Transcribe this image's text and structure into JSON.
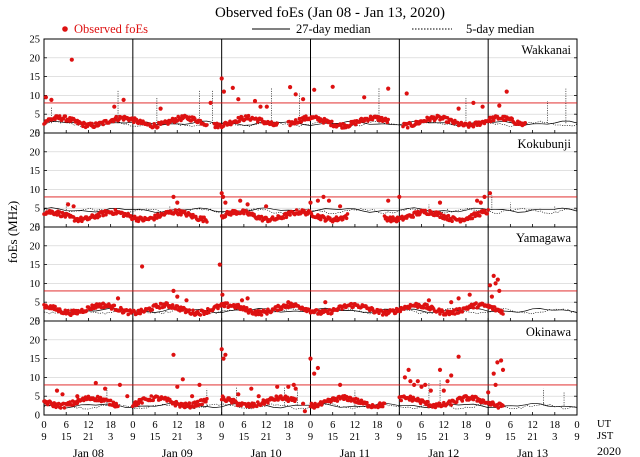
{
  "chart_data": {
    "type": "scatter",
    "title": "Observed foEs (Jan 08 - Jan 13, 2020)",
    "legend": {
      "observed": "Observed foEs",
      "median27": "27-day median",
      "median5": "5-day median",
      "observed_color": "#dd1111",
      "line_color": "#000000"
    },
    "ylabel": "foEs (MHz)",
    "ylim": [
      0,
      25
    ],
    "yticks": [
      "0",
      "5",
      "10",
      "15",
      "20",
      "25"
    ],
    "x_range_hours_ut": [
      0,
      144
    ],
    "xtick_ut": [
      "0",
      "6",
      "12",
      "18",
      "0",
      "6",
      "12",
      "18",
      "0",
      "6",
      "12",
      "18",
      "0",
      "6",
      "12",
      "18",
      "0",
      "6",
      "12",
      "18",
      "0",
      "6",
      "12",
      "18",
      "0"
    ],
    "xtick_jst": [
      "9",
      "15",
      "21",
      "3",
      "9",
      "15",
      "21",
      "3",
      "9",
      "15",
      "21",
      "3",
      "9",
      "15",
      "21",
      "3",
      "9",
      "15",
      "21",
      "3",
      "9",
      "15",
      "21",
      "3",
      "9"
    ],
    "ut_label": "UT",
    "jst_label": "JST",
    "days": [
      "Jan 08",
      "Jan 09",
      "Jan 10",
      "Jan 11",
      "Jan 12",
      "Jan 13"
    ],
    "year": "2020",
    "panels": [
      {
        "station": "Wakkanai",
        "threshold_mhz": 8,
        "median27_mhz": 2.6,
        "baseline_mhz": 3.0,
        "observed_coverage_hours": [
          [
            0,
            44
          ],
          [
            46,
            63
          ],
          [
            66,
            93
          ],
          [
            97,
            130
          ]
        ],
        "outliers": [
          [
            0.5,
            9.5
          ],
          [
            2.0,
            8.8
          ],
          [
            7.5,
            19.5
          ],
          [
            19.0,
            7.0
          ],
          [
            21.5,
            8.8
          ],
          [
            31.5,
            6.5
          ],
          [
            45.0,
            8.0
          ],
          [
            48.0,
            14.5
          ],
          [
            48.6,
            11.0
          ],
          [
            51.0,
            12.0
          ],
          [
            52.5,
            9.0
          ],
          [
            57.0,
            8.5
          ],
          [
            58.5,
            7.0
          ],
          [
            60.2,
            7.0
          ],
          [
            66.5,
            12.2
          ],
          [
            68.0,
            10.3
          ],
          [
            70.0,
            9.0
          ],
          [
            73.0,
            11.5
          ],
          [
            78.0,
            12.3
          ],
          [
            86.5,
            9.5
          ],
          [
            93.0,
            11.8
          ],
          [
            98.0,
            10.5
          ],
          [
            112.0,
            6.5
          ],
          [
            116.0,
            8.0
          ],
          [
            118.5,
            7.0
          ],
          [
            123.0,
            7.3
          ],
          [
            125.0,
            11.0
          ]
        ],
        "spikes_5day": [
          [
            2.0,
            7.0
          ],
          [
            20.0,
            11.5
          ],
          [
            30.5,
            9.5
          ],
          [
            42.0,
            11.5
          ],
          [
            45.5,
            11.2
          ],
          [
            61.5,
            12.0
          ],
          [
            69.0,
            10.5
          ],
          [
            90.5,
            12.0
          ],
          [
            114.0,
            9.5
          ],
          [
            136.0,
            8.5
          ],
          [
            141.0,
            11.8
          ]
        ]
      },
      {
        "station": "Kokubunji",
        "threshold_mhz": 8,
        "median27_mhz": 4.5,
        "baseline_mhz": 3.0,
        "observed_coverage_hours": [
          [
            0,
            44
          ],
          [
            48,
            82
          ],
          [
            92,
            120
          ]
        ],
        "outliers": [
          [
            6.5,
            6.0
          ],
          [
            8.0,
            5.5
          ],
          [
            35.0,
            8.0
          ],
          [
            36.0,
            6.5
          ],
          [
            48.0,
            9.0
          ],
          [
            48.4,
            8.0
          ],
          [
            49.0,
            6.5
          ],
          [
            53.0,
            7.0
          ],
          [
            55.0,
            6.0
          ],
          [
            60.0,
            5.5
          ],
          [
            72.0,
            6.5
          ],
          [
            74.0,
            7.0
          ],
          [
            75.5,
            8.0
          ],
          [
            77.0,
            7.0
          ],
          [
            80.0,
            5.5
          ],
          [
            93.0,
            7.0
          ],
          [
            96.0,
            8.0
          ],
          [
            107.0,
            6.5
          ],
          [
            117.0,
            7.0
          ],
          [
            120.5,
            9.0
          ],
          [
            119.0,
            8.0
          ],
          [
            118.0,
            6.5
          ]
        ],
        "spikes_5day": [
          [
            6.0,
            6.5
          ],
          [
            34.0,
            5.5
          ],
          [
            104.0,
            6.0
          ],
          [
            109.0,
            5.0
          ],
          [
            121.0,
            8.5
          ],
          [
            126.0,
            6.5
          ],
          [
            138.0,
            5.5
          ]
        ]
      },
      {
        "station": "Yamagawa",
        "threshold_mhz": 8,
        "median27_mhz": 2.8,
        "baseline_mhz": 3.2,
        "observed_coverage_hours": [
          [
            0,
            124
          ]
        ],
        "outliers": [
          [
            20.0,
            6.0
          ],
          [
            26.5,
            14.5
          ],
          [
            35.0,
            8.0
          ],
          [
            36.0,
            6.5
          ],
          [
            38.5,
            5.5
          ],
          [
            47.5,
            15.0
          ],
          [
            48.2,
            7.0
          ],
          [
            53.5,
            5.5
          ],
          [
            55.0,
            6.0
          ],
          [
            66.0,
            5.0
          ],
          [
            76.0,
            5.0
          ],
          [
            104.0,
            5.5
          ],
          [
            110.0,
            5.0
          ],
          [
            112.0,
            6.0
          ],
          [
            115.0,
            7.0
          ],
          [
            120.5,
            9.5
          ],
          [
            121.5,
            12.0
          ],
          [
            122.0,
            10.0
          ],
          [
            122.6,
            11.0
          ],
          [
            123.0,
            8.0
          ],
          [
            121.0,
            6.5
          ]
        ],
        "spikes_5day": []
      },
      {
        "station": "Okinawa",
        "threshold_mhz": 8,
        "median27_mhz": 2.5,
        "baseline_mhz": 3.5,
        "observed_coverage_hours": [
          [
            0,
            20
          ],
          [
            24,
            44
          ],
          [
            48,
            68
          ],
          [
            72,
            92
          ],
          [
            96,
            124
          ]
        ],
        "outliers": [
          [
            3.5,
            6.5
          ],
          [
            5.0,
            5.5
          ],
          [
            9.0,
            5.0
          ],
          [
            14.0,
            8.5
          ],
          [
            16.5,
            7.0
          ],
          [
            20.5,
            8.0
          ],
          [
            22.5,
            5.0
          ],
          [
            35.0,
            16.0
          ],
          [
            36.0,
            7.5
          ],
          [
            37.5,
            9.5
          ],
          [
            40.0,
            5.0
          ],
          [
            41.0,
            3.0
          ],
          [
            42.0,
            8.0
          ],
          [
            48.0,
            17.5
          ],
          [
            48.5,
            15.0
          ],
          [
            49.0,
            16.0
          ],
          [
            52.5,
            5.5
          ],
          [
            56.0,
            7.0
          ],
          [
            58.0,
            5.0
          ],
          [
            63.0,
            7.5
          ],
          [
            66.0,
            7.5
          ],
          [
            66.8,
            4.5
          ],
          [
            67.5,
            8.0
          ],
          [
            68.0,
            7.0
          ],
          [
            70.0,
            3.0
          ],
          [
            70.5,
            1.0
          ],
          [
            72.0,
            15.0
          ],
          [
            73.0,
            11.0
          ],
          [
            74.0,
            12.5
          ],
          [
            80.0,
            8.0
          ],
          [
            97.5,
            10.0
          ],
          [
            98.5,
            12.0
          ],
          [
            99.0,
            9.0
          ],
          [
            100.0,
            8.0
          ],
          [
            101.0,
            9.0
          ],
          [
            102.0,
            7.5
          ],
          [
            103.0,
            8.0
          ],
          [
            104.5,
            6.5
          ],
          [
            107.0,
            12.0
          ],
          [
            108.0,
            6.5
          ],
          [
            109.0,
            9.0
          ],
          [
            110.0,
            10.5
          ],
          [
            112.0,
            15.5
          ],
          [
            114.0,
            5.0
          ],
          [
            120.0,
            6.0
          ],
          [
            121.5,
            11.0
          ],
          [
            122.5,
            14.0
          ],
          [
            123.5,
            14.5
          ],
          [
            124.0,
            12.0
          ],
          [
            122.0,
            8.0
          ]
        ],
        "spikes_5day": [
          [
            17.0,
            7.5
          ],
          [
            44.0,
            7.0
          ],
          [
            52.0,
            7.5
          ],
          [
            65.0,
            7.5
          ],
          [
            68.5,
            6.5
          ],
          [
            84.0,
            6.5
          ],
          [
            104.0,
            8.5
          ],
          [
            107.0,
            9.5
          ],
          [
            135.0,
            7.0
          ],
          [
            140.5,
            6.0
          ]
        ]
      }
    ]
  }
}
